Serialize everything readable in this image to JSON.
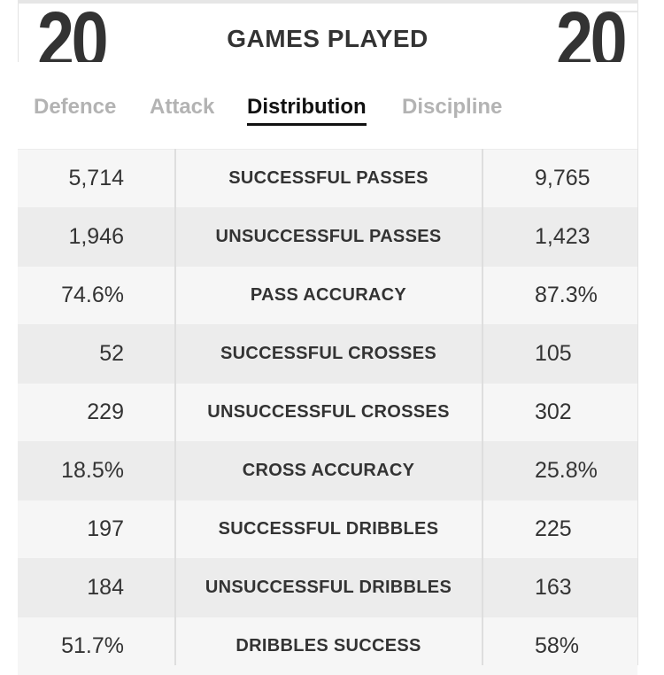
{
  "header": {
    "games_left": "20",
    "games_right": "20",
    "title": "GAMES PLAYED"
  },
  "tabs": [
    {
      "label": "Defence",
      "active": false
    },
    {
      "label": "Attack",
      "active": false
    },
    {
      "label": "Distribution",
      "active": true
    },
    {
      "label": "Discipline",
      "active": false
    }
  ],
  "stats": [
    {
      "left": "5,714",
      "label": "SUCCESSFUL PASSES",
      "right": "9,765"
    },
    {
      "left": "1,946",
      "label": "UNSUCCESSFUL PASSES",
      "right": "1,423"
    },
    {
      "left": "74.6%",
      "label": "PASS ACCURACY",
      "right": "87.3%"
    },
    {
      "left": "52",
      "label": "SUCCESSFUL CROSSES",
      "right": "105"
    },
    {
      "left": "229",
      "label": "UNSUCCESSFUL CROSSES",
      "right": "302"
    },
    {
      "left": "18.5%",
      "label": "CROSS ACCURACY",
      "right": "25.8%"
    },
    {
      "left": "197",
      "label": "SUCCESSFUL DRIBBLES",
      "right": "225"
    },
    {
      "left": "184",
      "label": "UNSUCCESSFUL DRIBBLES",
      "right": "163"
    },
    {
      "left": "51.7%",
      "label": "DRIBBLES SUCCESS",
      "right": "58%"
    }
  ]
}
